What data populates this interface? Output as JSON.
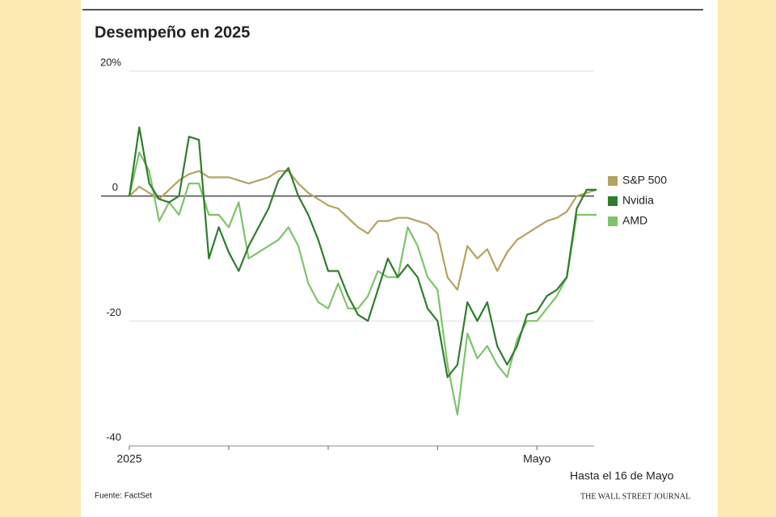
{
  "chart_data": {
    "type": "line",
    "title": "Desempeño en 2025",
    "categories": [
      "2025",
      null,
      null,
      null,
      null,
      null,
      null,
      null,
      null,
      null,
      null,
      null,
      null,
      null,
      null,
      null,
      null,
      null,
      null,
      null,
      null,
      null,
      null,
      null,
      null,
      null,
      null,
      null,
      null,
      null,
      null,
      null,
      null,
      null,
      null,
      null,
      null,
      null,
      null,
      null,
      null,
      "Mayo",
      null,
      null,
      null,
      null,
      null,
      null
    ],
    "xticks": [
      0,
      10,
      20,
      31,
      41
    ],
    "series": [
      {
        "name": "S&P 500",
        "color": "#b3a35f",
        "values": [
          0,
          1.5,
          0.5,
          -0.5,
          1,
          2.5,
          3.5,
          4,
          3,
          3,
          3,
          2.5,
          2,
          2.5,
          3,
          4,
          4,
          2,
          0.5,
          -0.5,
          -1.5,
          -2,
          -3.5,
          -5,
          -6,
          -4,
          -4,
          -3.5,
          -3.5,
          -4,
          -4.5,
          -6,
          -13,
          -15,
          -8,
          -10,
          -8.5,
          -12,
          -9,
          -7,
          -6,
          -5,
          -4,
          -3.5,
          -2.5,
          0,
          0.5,
          1
        ]
      },
      {
        "name": "Nvidia",
        "color": "#2f7d2b",
        "values": [
          0,
          11,
          2,
          -0.5,
          -1,
          0,
          9.5,
          9,
          -10,
          -5,
          -9,
          -12,
          -8,
          -5,
          -2,
          2.5,
          4.5,
          0,
          -3,
          -7,
          -12,
          -12,
          -16,
          -19,
          -20,
          -15,
          -10,
          -13,
          -11,
          -13,
          -18,
          -20,
          -29,
          -27,
          -17,
          -20,
          -17,
          -24,
          -27,
          -24,
          -19,
          -18.5,
          -16,
          -15,
          -13,
          -2,
          1,
          1
        ]
      },
      {
        "name": "AMD",
        "color": "#7cc46a",
        "values": [
          0,
          7,
          4,
          -4,
          -1,
          -3,
          2,
          2,
          -3,
          -3,
          -5,
          -1,
          -10,
          -9,
          -8,
          -7,
          -5,
          -8,
          -14,
          -17,
          -18,
          -14,
          -18,
          -18,
          -16,
          -12,
          -13,
          -13,
          -5,
          -8,
          -13,
          -15,
          -27,
          -35,
          -22,
          -26,
          -24,
          -27,
          -29,
          -23,
          -20,
          -20,
          -18,
          -16,
          -13,
          -3,
          -3,
          -3
        ]
      }
    ],
    "ylim": [
      -40,
      20
    ],
    "yticks": [
      {
        "value": 20,
        "label": "20%"
      },
      0,
      -20,
      -40
    ],
    "grid": true,
    "legend": "right",
    "note": "Hasta el 16 de Mayo",
    "source": "Fuente: FactSet",
    "publisher": "THE WALL STREET JOURNAL"
  }
}
